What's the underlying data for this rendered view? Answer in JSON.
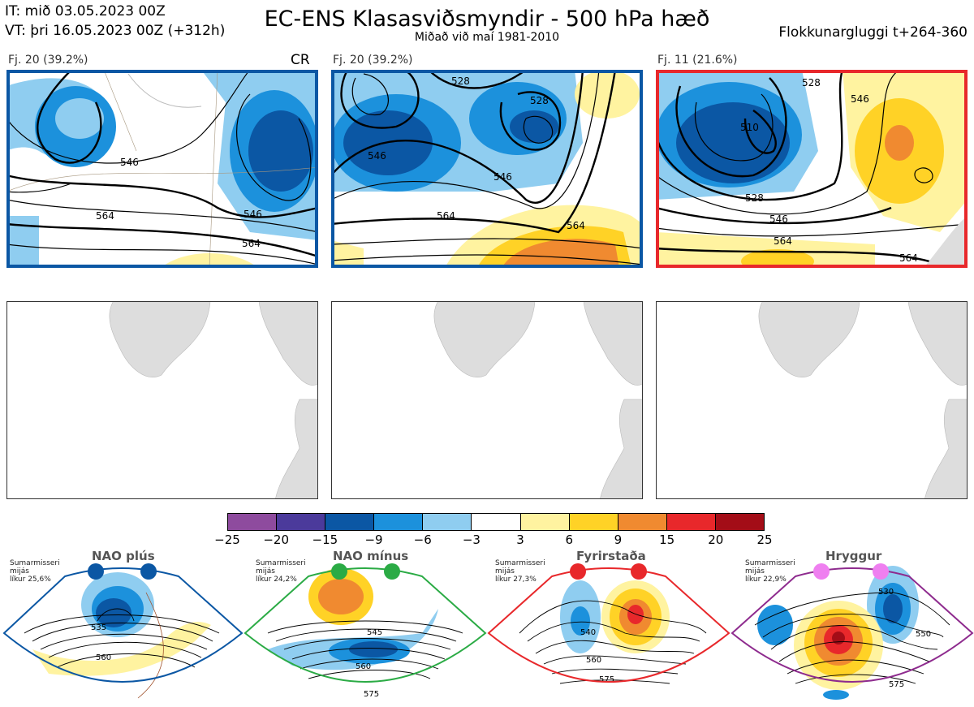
{
  "header": {
    "it_line": "IT: mið 03.05.2023 00Z",
    "vt_line": "VT: þri 16.05.2023 00Z  (+312h)",
    "title": "EC-ENS Klasasviðsmyndir - 500 hPa hæð",
    "subtitle": "Miðað við maí 1981-2010",
    "window": "Flokkunargluggi t+264-360"
  },
  "panels": [
    {
      "label": "Fj. 20 (39.2%)",
      "marker": "CR",
      "regime_color": "#0b57a4",
      "contours": [
        "546",
        "564",
        "546",
        "564"
      ]
    },
    {
      "label": "Fj. 20 (39.2%)",
      "regime_color": "#0b57a4",
      "contours": [
        "528",
        "528",
        "546",
        "546",
        "564",
        "564"
      ]
    },
    {
      "label": "Fj. 11 (21.6%)",
      "regime_color": "#e8282b",
      "contours": [
        "528",
        "510",
        "546",
        "528",
        "546",
        "564",
        "564"
      ]
    }
  ],
  "colorbar": {
    "ticks": [
      "−25",
      "−20",
      "−15",
      "−9",
      "−6",
      "−3",
      "3",
      "6",
      "9",
      "15",
      "20",
      "25"
    ],
    "colors": [
      "#8e4b9e",
      "#4b3a9b",
      "#0b57a4",
      "#1c91dc",
      "#8fcdf0",
      "#ffffff",
      "#fff3a0",
      "#ffd226",
      "#f08a30",
      "#e8282b",
      "#a30d17"
    ]
  },
  "regimes": [
    {
      "name": "NAO plús",
      "note": [
        "Sumarmisseri",
        "mijás",
        "líkur 25,6%"
      ],
      "color": "#0b57a4",
      "dot": "#0b57a4",
      "contours": [
        "535",
        "560"
      ]
    },
    {
      "name": "NAO mínus",
      "note": [
        "Sumarmisseri",
        "mijás",
        "líkur 24,2%"
      ],
      "color": "#2bab45",
      "dot": "#2bab45",
      "contours": [
        "545",
        "560",
        "575"
      ]
    },
    {
      "name": "Fyrirstaða",
      "note": [
        "Sumarmisseri",
        "mijás",
        "líkur 27,3%"
      ],
      "color": "#e8282b",
      "dot": "#e8282b",
      "contours": [
        "540",
        "560",
        "575"
      ]
    },
    {
      "name": "Hryggur",
      "note": [
        "Sumarmisseri",
        "mijás",
        "líkur 22,9%"
      ],
      "color": "#8e2b8e",
      "dot": "#ef7ff0",
      "contours": [
        "530",
        "550",
        "575"
      ]
    }
  ]
}
